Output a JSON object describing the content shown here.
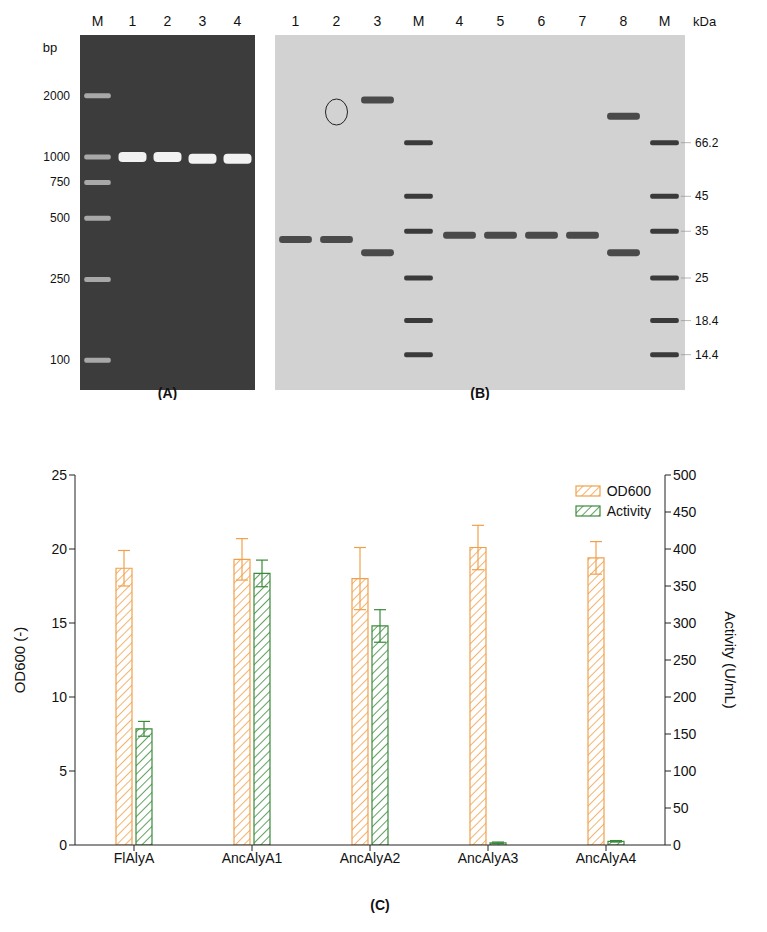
{
  "panel_a": {
    "title": "(A)",
    "type": "gel",
    "unit": "bp",
    "lanes": [
      "M",
      "1",
      "2",
      "3",
      "4"
    ],
    "marker_lane": "M",
    "ylim": [
      80,
      3000
    ],
    "marker_sizes": [
      2000,
      1000,
      750,
      500,
      250,
      100
    ],
    "sample_bands": [
      {
        "lane": "1",
        "size": 1000
      },
      {
        "lane": "2",
        "size": 1000
      },
      {
        "lane": "3",
        "size": 980
      },
      {
        "lane": "4",
        "size": 980
      }
    ]
  },
  "panel_b": {
    "title": "(B)",
    "type": "gel",
    "unit": "kDa",
    "lanes": [
      "1",
      "2",
      "3",
      "M",
      "4",
      "5",
      "6",
      "7",
      "8",
      "M"
    ],
    "marker_lane": "M",
    "ylim": [
      12,
      120
    ],
    "marker_sizes": [
      66.2,
      45,
      35,
      25,
      18.4,
      14.4
    ],
    "sample_bands": [
      {
        "lane": "1",
        "size": 33
      },
      {
        "lane": "2",
        "size": 33
      },
      {
        "lane": "3",
        "size": 90
      },
      {
        "lane": "3",
        "size": 30
      },
      {
        "lane": "4",
        "size": 34
      },
      {
        "lane": "5",
        "size": 34
      },
      {
        "lane": "6",
        "size": 34
      },
      {
        "lane": "7",
        "size": 34
      },
      {
        "lane": "8",
        "size": 80
      },
      {
        "lane": "8",
        "size": 30
      }
    ]
  },
  "chart_data": {
    "type": "bar",
    "title": "(C)",
    "categories": [
      "FlAlyA",
      "AncAlyA1",
      "AncAlyA2",
      "AncAlyA3",
      "AncAlyA4"
    ],
    "series": [
      {
        "name": "OD600",
        "color": "#f0a04b",
        "values": [
          18.7,
          19.3,
          18.0,
          20.1,
          19.4
        ],
        "errors": [
          1.2,
          1.4,
          2.1,
          1.5,
          1.1
        ]
      },
      {
        "name": "Activity",
        "color": "#3a8a3a",
        "axis": "y2",
        "values": [
          157,
          367,
          296,
          3,
          5
        ],
        "errors": [
          10,
          18,
          22,
          1,
          1
        ]
      }
    ],
    "y_label": "OD600 (-)",
    "y2_label": "Activity (U/mL)",
    "ylim": [
      0,
      25
    ],
    "yticks": [
      0,
      5,
      10,
      15,
      20,
      25
    ],
    "y2lim": [
      0,
      500
    ],
    "y2ticks": [
      0,
      50,
      100,
      150,
      200,
      250,
      300,
      350,
      400,
      450,
      500
    ],
    "legend": "top-right",
    "grid": false
  }
}
